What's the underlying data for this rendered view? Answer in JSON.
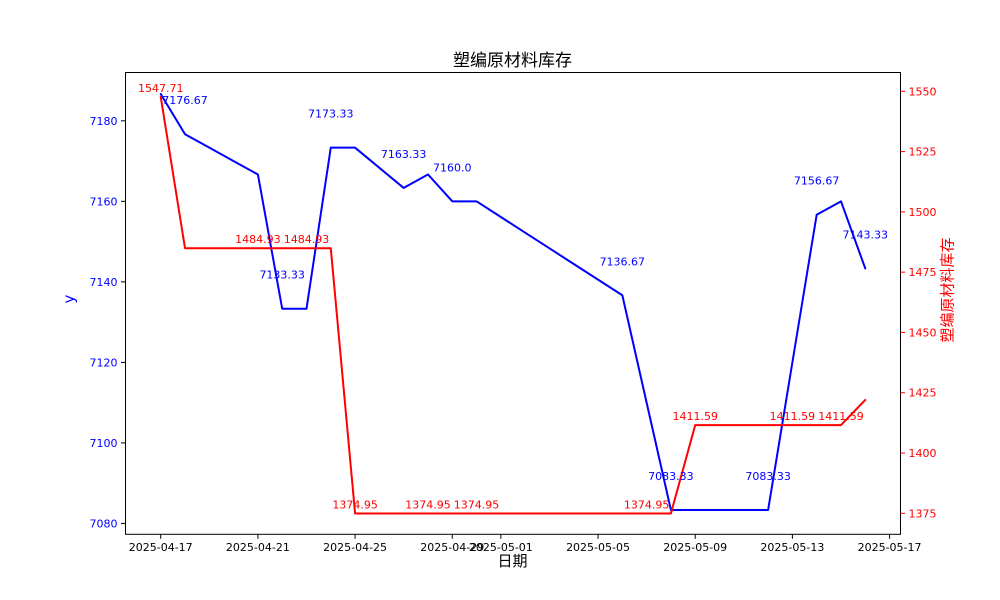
{
  "figure": {
    "title": "塑编原材料库存",
    "x_axis_label": "日期",
    "y_left_axis_label": "y",
    "y_right_axis_label": "塑编原材料库存"
  },
  "colors": {
    "left_series": "#0000ff",
    "right_series": "#ff0000",
    "axis_frame": "#000000",
    "x_tick": "#000000",
    "background": "#ffffff"
  },
  "chart_data": {
    "type": "line",
    "x": [
      "2025-04-17",
      "2025-04-18",
      "2025-04-19",
      "2025-04-20",
      "2025-04-21",
      "2025-04-22",
      "2025-04-23",
      "2025-04-24",
      "2025-04-25",
      "2025-04-26",
      "2025-04-27",
      "2025-04-28",
      "2025-04-29",
      "2025-04-30",
      "2025-05-01",
      "2025-05-02",
      "2025-05-03",
      "2025-05-04",
      "2025-05-05",
      "2025-05-06",
      "2025-05-07",
      "2025-05-08",
      "2025-05-09",
      "2025-05-10",
      "2025-05-11",
      "2025-05-12",
      "2025-05-13",
      "2025-05-14",
      "2025-05-15",
      "2025-05-16"
    ],
    "series": [
      {
        "name": "y",
        "axis": "left",
        "color": "#0000ff",
        "values": [
          7186.67,
          7176.67,
          7173.33,
          7170.0,
          7166.67,
          7133.33,
          7133.33,
          7173.33,
          7173.33,
          7168.33,
          7163.33,
          7166.67,
          7160.0,
          7160.0,
          7156.11,
          7152.22,
          7148.33,
          7144.44,
          7140.56,
          7136.67,
          7110.0,
          7083.33,
          7083.33,
          7083.33,
          7083.33,
          7083.33,
          7120.0,
          7156.67,
          7160.0,
          7143.33
        ]
      },
      {
        "name": "塑编原材料库存",
        "axis": "right",
        "color": "#ff0000",
        "values": [
          1547.71,
          1484.93,
          1484.93,
          1484.93,
          1484.93,
          1484.93,
          1484.93,
          1484.93,
          1374.95,
          1374.95,
          1374.95,
          1374.95,
          1374.95,
          1374.95,
          1374.95,
          1374.95,
          1374.95,
          1374.95,
          1374.95,
          1374.95,
          1374.95,
          1374.95,
          1411.59,
          1411.59,
          1411.59,
          1411.59,
          1411.59,
          1411.59,
          1411.59,
          1422.0
        ]
      }
    ],
    "point_labels": [
      {
        "series": 0,
        "index": 1,
        "text": "7176.67"
      },
      {
        "series": 0,
        "index": 5,
        "text": "7133.33"
      },
      {
        "series": 0,
        "index": 7,
        "text": "7173.33"
      },
      {
        "series": 0,
        "index": 10,
        "text": "7163.33"
      },
      {
        "series": 0,
        "index": 12,
        "text": "7160.0"
      },
      {
        "series": 0,
        "index": 19,
        "text": "7136.67"
      },
      {
        "series": 0,
        "index": 21,
        "text": "7083.33"
      },
      {
        "series": 0,
        "index": 25,
        "text": "7083.33"
      },
      {
        "series": 0,
        "index": 27,
        "text": "7156.67"
      },
      {
        "series": 0,
        "index": 29,
        "text": "7143.33"
      },
      {
        "series": 1,
        "index": 0,
        "text": "1547.71"
      },
      {
        "series": 1,
        "index": 4,
        "text": "1484.93"
      },
      {
        "series": 1,
        "index": 6,
        "text": "1484.93"
      },
      {
        "series": 1,
        "index": 8,
        "text": "1374.95"
      },
      {
        "series": 1,
        "index": 11,
        "text": "1374.95"
      },
      {
        "series": 1,
        "index": 13,
        "text": "1374.95"
      },
      {
        "series": 1,
        "index": 20,
        "text": "1374.95"
      },
      {
        "series": 1,
        "index": 22,
        "text": "1411.59"
      },
      {
        "series": 1,
        "index": 26,
        "text": "1411.59"
      },
      {
        "series": 1,
        "index": 28,
        "text": "1411.59"
      }
    ],
    "x_ticks": [
      {
        "label": "2025-04-17",
        "day_index": 0
      },
      {
        "label": "2025-04-21",
        "day_index": 4
      },
      {
        "label": "2025-04-25",
        "day_index": 8
      },
      {
        "label": "2025-04-29",
        "day_index": 12
      },
      {
        "label": "2025-05-01",
        "day_index": 14
      },
      {
        "label": "2025-05-05",
        "day_index": 18
      },
      {
        "label": "2025-05-09",
        "day_index": 22
      },
      {
        "label": "2025-05-13",
        "day_index": 26
      },
      {
        "label": "2025-05-17",
        "day_index": 30
      }
    ],
    "y_left_ticks": [
      7180,
      7160,
      7140,
      7120,
      7100,
      7080
    ],
    "y_right_ticks": [
      1550,
      1525,
      1500,
      1475,
      1450,
      1425,
      1400,
      1375
    ],
    "axes": {
      "x_range_day_index": [
        -1.45,
        30.45
      ],
      "y_left_range": [
        7077.3,
        7192.0
      ],
      "y_right_range": [
        1366.3,
        1557.8
      ],
      "grid": false,
      "legend": false
    }
  }
}
